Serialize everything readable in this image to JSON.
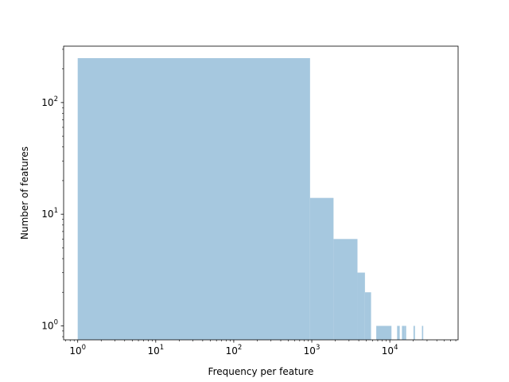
{
  "chart_data": {
    "type": "bar",
    "title": "",
    "xlabel": "Frequency per feature",
    "ylabel": "Number of features",
    "xscale": "log",
    "yscale": "log",
    "xlim": [
      0.66,
      75000
    ],
    "ylim": [
      0.75,
      320
    ],
    "grid": false,
    "bar_color": "#a6c8df",
    "x_ticks": [
      {
        "value": 1,
        "base": "10",
        "exp": "0"
      },
      {
        "value": 10,
        "base": "10",
        "exp": "1"
      },
      {
        "value": 100,
        "base": "10",
        "exp": "2"
      },
      {
        "value": 1000,
        "base": "10",
        "exp": "3"
      },
      {
        "value": 10000,
        "base": "10",
        "exp": "4"
      }
    ],
    "y_ticks": [
      {
        "value": 1,
        "base": "10",
        "exp": "0"
      },
      {
        "value": 10,
        "base": "10",
        "exp": "1"
      },
      {
        "value": 100,
        "base": "10",
        "exp": "2"
      }
    ],
    "bins": [
      {
        "x0": 1,
        "x1": 950,
        "count": 250
      },
      {
        "x0": 950,
        "x1": 1900,
        "count": 14
      },
      {
        "x0": 1900,
        "x1": 3850,
        "count": 6
      },
      {
        "x0": 3850,
        "x1": 4800,
        "count": 3
      },
      {
        "x0": 4800,
        "x1": 5750,
        "count": 2
      },
      {
        "x0": 6700,
        "x1": 10500,
        "count": 1
      },
      {
        "x0": 12400,
        "x1": 13400,
        "count": 1
      },
      {
        "x0": 14300,
        "x1": 15300,
        "count": 1
      },
      {
        "x0": 15300,
        "x1": 16200,
        "count": 1
      },
      {
        "x0": 20100,
        "x1": 21000,
        "count": 1
      },
      {
        "x0": 25800,
        "x1": 26800,
        "count": 1
      }
    ]
  }
}
